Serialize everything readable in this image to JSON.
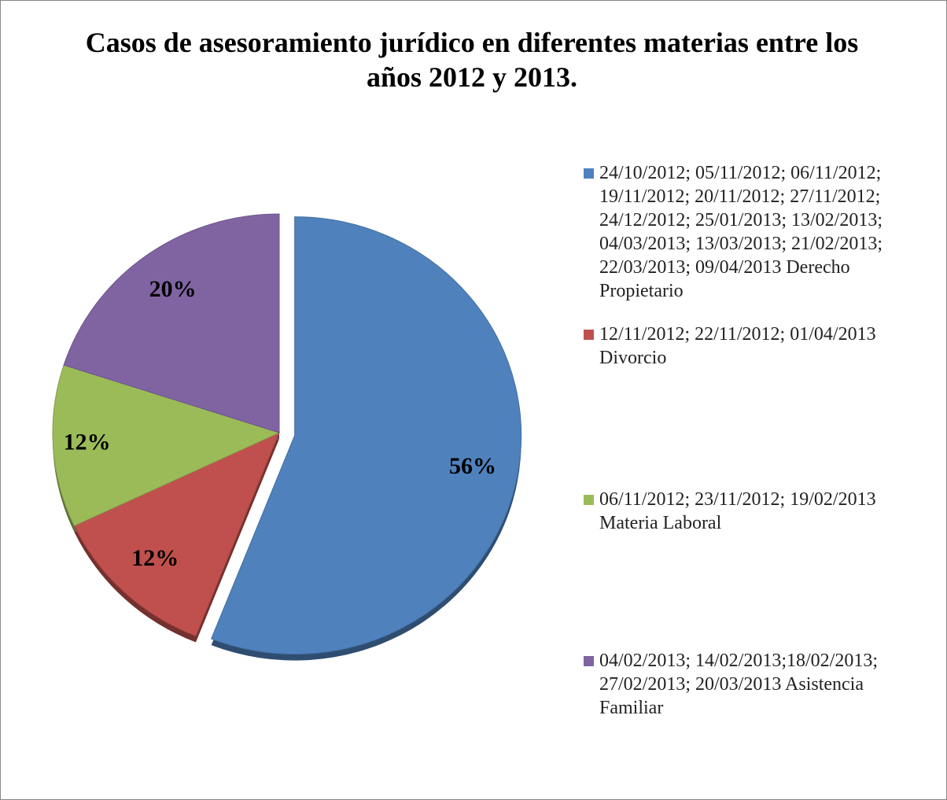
{
  "chart_data": {
    "type": "pie",
    "title": "Casos de asesoramiento jurídico en diferentes materias entre los años 2012 y 2013.",
    "categories": [
      "24/10/2012; 05/11/2012; 06/11/2012; 19/11/2012; 20/11/2012; 27/11/2012; 24/12/2012; 25/01/2013; 13/02/2013; 04/03/2013; 13/03/2013; 21/02/2013; 22/03/2013; 09/04/2013 Derecho Propietario",
      "12/11/2012; 22/11/2012; 01/04/2013 Divorcio",
      "06/11/2012; 23/11/2012; 19/02/2013 Materia Laboral",
      "04/02/2013; 14/02/2013;18/02/2013; 27/02/2013; 20/03/2013 Asistencia Familiar"
    ],
    "values": [
      56,
      12,
      12,
      20
    ],
    "value_labels": [
      "56%",
      "12%",
      "12%",
      "20%"
    ],
    "colors": [
      "#4f81bd",
      "#c0504d",
      "#9bbb59",
      "#8064a2"
    ],
    "legend": "right"
  }
}
